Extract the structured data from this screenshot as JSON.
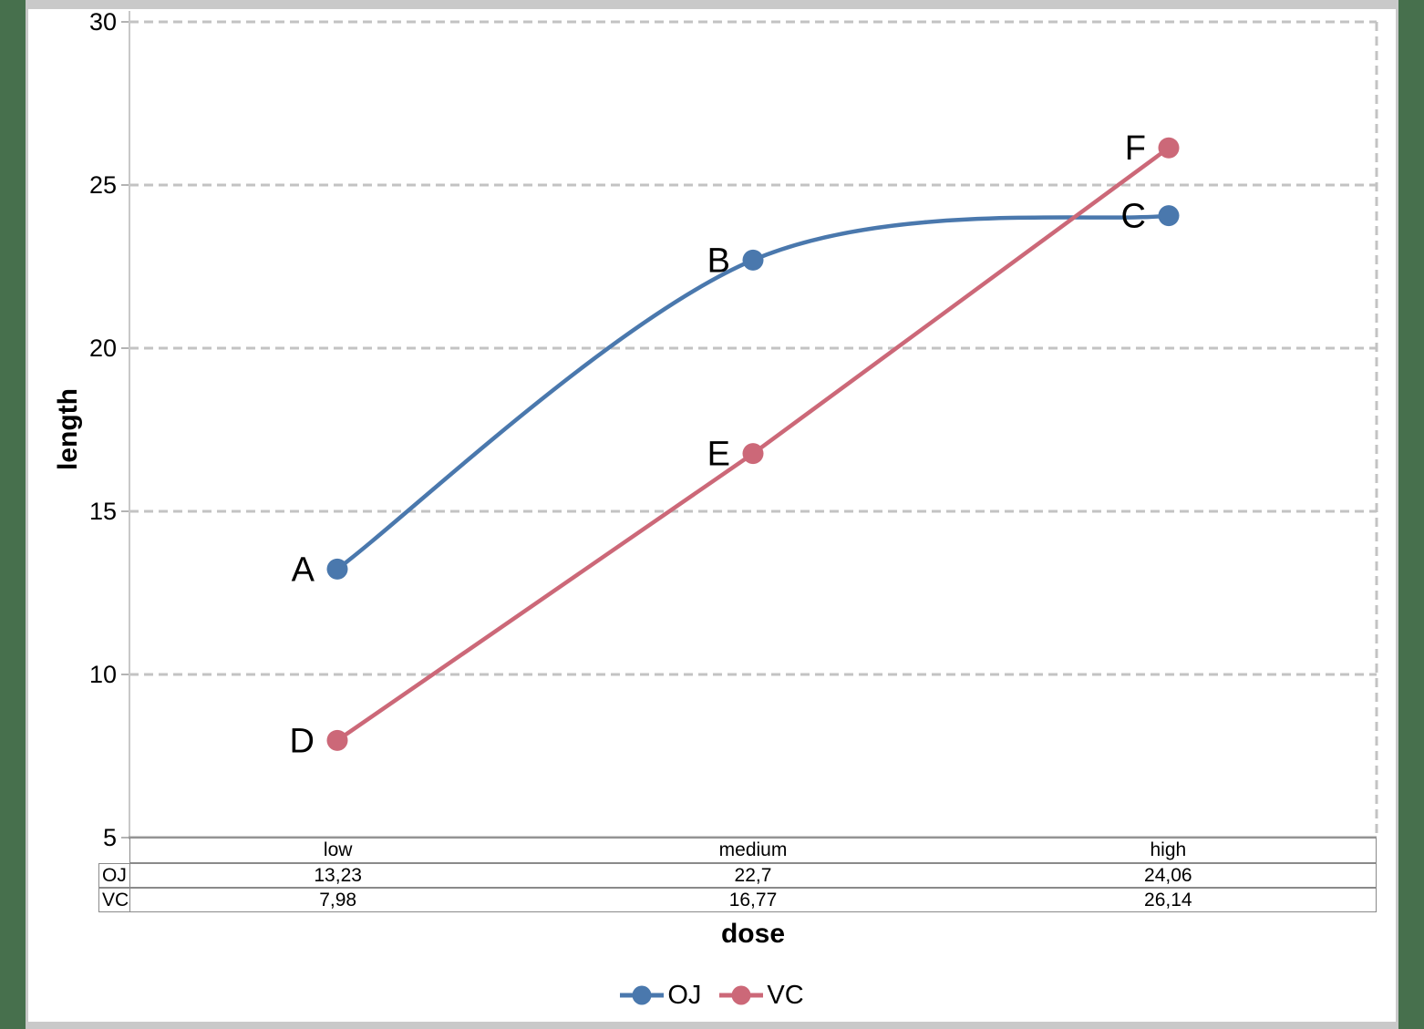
{
  "frame": {
    "desktop_color": "#47704d",
    "window_border_color": "#c9c9c9",
    "window_background": "#ffffff"
  },
  "chart_data": {
    "type": "line",
    "categories": [
      "low",
      "medium",
      "high"
    ],
    "series": [
      {
        "name": "OJ",
        "color": "#4a78ad",
        "values": [
          13.23,
          22.7,
          24.06
        ],
        "point_labels": [
          "A",
          "B",
          "C"
        ],
        "smooth": true
      },
      {
        "name": "VC",
        "color": "#cc6878",
        "values": [
          7.98,
          16.77,
          26.14
        ],
        "point_labels": [
          "D",
          "E",
          "F"
        ],
        "smooth": false
      }
    ],
    "xlabel": "dose",
    "ylabel": "length",
    "ylim": [
      5,
      30
    ],
    "yticks": [
      30,
      25,
      20,
      15,
      10,
      5
    ],
    "grid": "horizontal-dashed",
    "gridline_color": "#c3c3c3",
    "axis_color": "#9a9a9a",
    "legend_position": "bottom"
  },
  "table": {
    "header": [
      "low",
      "medium",
      "high"
    ],
    "rows": [
      {
        "label": "OJ",
        "values": [
          "13,23",
          "22,7",
          "24,06"
        ]
      },
      {
        "label": "VC",
        "values": [
          "7,98",
          "16,77",
          "26,14"
        ]
      }
    ]
  },
  "legend": {
    "items": [
      {
        "label": "OJ",
        "color": "#4a78ad"
      },
      {
        "label": "VC",
        "color": "#cc6878"
      }
    ]
  }
}
